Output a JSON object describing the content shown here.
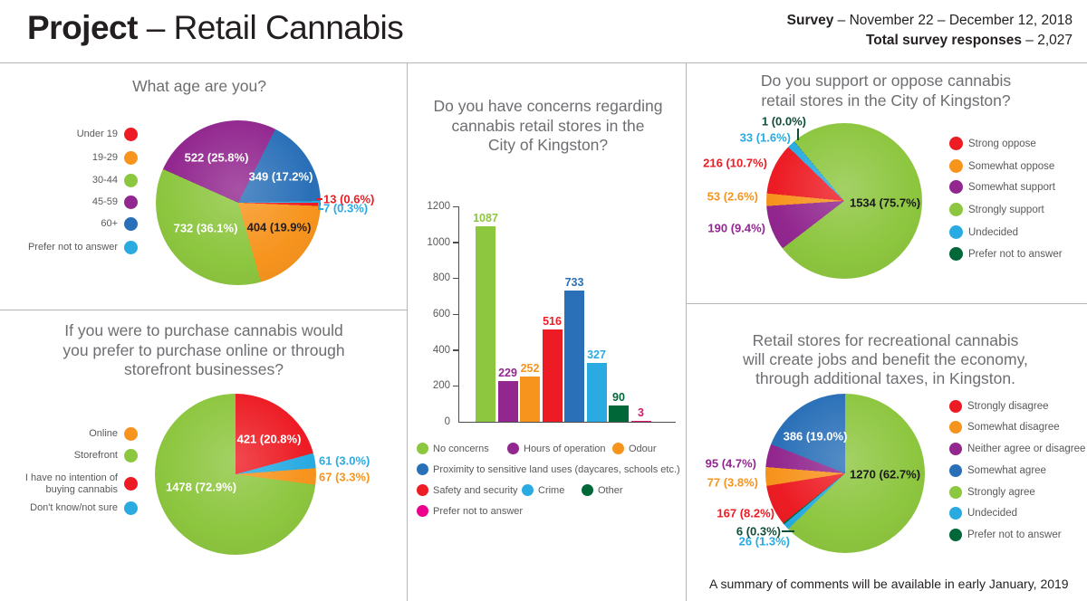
{
  "header": {
    "title_bold": "Project",
    "title_rest": " – Retail Cannabis",
    "survey_bold": "Survey",
    "survey_rest": " – November 22 – December 12, 2018",
    "responses_bold": "Total survey responses",
    "responses_rest": " – 2,027"
  },
  "footnote": "A summary of comments will be available in early January, 2019",
  "colors": {
    "red": "#ed1c24",
    "orange": "#f7941e",
    "green": "#8dc63f",
    "purple": "#92278f",
    "blue": "#2a70b8",
    "light_blue": "#29abe2",
    "dark_green": "#006838",
    "pink": "#d6186f"
  },
  "chart_data": [
    {
      "id": "age",
      "type": "pie",
      "title": "What age are you?",
      "title_lines": [
        "What age are you?"
      ],
      "legend_position": "left",
      "total": 2027,
      "legend": [
        {
          "label": "Under 19",
          "color": "#ed1c24"
        },
        {
          "label": "19-29",
          "color": "#f7941e"
        },
        {
          "label": "30-44",
          "color": "#8dc63f"
        },
        {
          "label": "45-59",
          "color": "#92278f"
        },
        {
          "label": "60+",
          "color": "#2a70b8"
        },
        {
          "label": "Prefer not to answer",
          "color": "#29abe2"
        }
      ],
      "start_deg": 90,
      "slices": [
        {
          "label": "Under 19",
          "value": 13,
          "pct": 0.6,
          "color": "#ed1c24",
          "label_color": "#ed1c24"
        },
        {
          "label": "19-29",
          "value": 404,
          "pct": 19.9,
          "color": "#f7941e",
          "label_color": "#231f20"
        },
        {
          "label": "30-44",
          "value": 732,
          "pct": 36.1,
          "color": "#8dc63f",
          "label_color": "#ffffff"
        },
        {
          "label": "45-59",
          "value": 522,
          "pct": 25.8,
          "color": "#92278f",
          "label_color": "#ffffff"
        },
        {
          "label": "60+",
          "value": 349,
          "pct": 17.2,
          "color": "#2a70b8",
          "label_color": "#ffffff"
        },
        {
          "label": "Prefer not to answer",
          "value": 7,
          "pct": 0.3,
          "color": "#29abe2",
          "label_color": "#29abe2"
        }
      ]
    },
    {
      "id": "purchase",
      "type": "pie",
      "title": "If you were to purchase cannabis would you prefer to purchase online or through storefront businesses?",
      "title_lines": [
        "If you were to purchase cannabis would",
        "you prefer to purchase online or through",
        "storefront businesses?"
      ],
      "legend_position": "left",
      "total": 2027,
      "legend": [
        {
          "label": "Online",
          "color": "#f7941e"
        },
        {
          "label": "Storefront",
          "color": "#8dc63f"
        },
        {
          "label": "I have no intention of buying cannabis",
          "label_lines": [
            "I have no intention of",
            "buying cannabis"
          ],
          "color": "#ed1c24"
        },
        {
          "label": "Don't know/not sure",
          "color": "#29abe2"
        }
      ],
      "start_deg": 0,
      "slices": [
        {
          "label": "I have no intention of buying cannabis",
          "value": 421,
          "pct": 20.8,
          "color": "#ed1c24",
          "label_color": "#ffffff"
        },
        {
          "label": "Don't know/not sure",
          "value": 61,
          "pct": 3.0,
          "color": "#29abe2",
          "label_color": "#29abe2"
        },
        {
          "label": "Online",
          "value": 67,
          "pct": 3.3,
          "color": "#f7941e",
          "label_color": "#f7941e"
        },
        {
          "label": "Storefront",
          "value": 1478,
          "pct": 72.9,
          "color": "#8dc63f",
          "label_color": "#ffffff"
        }
      ]
    },
    {
      "id": "concerns",
      "type": "bar",
      "title": "Do you have concerns regarding cannabis retail stores in the City of Kingston?",
      "title_lines": [
        "Do you have concerns regarding",
        "cannabis retail stores in the",
        "City of Kingston?"
      ],
      "xlabel": "",
      "ylabel": "",
      "ylim": [
        0,
        1200
      ],
      "yticks": [
        0,
        200,
        400,
        600,
        800,
        1000,
        1200
      ],
      "grid": false,
      "legend_position": "bottom",
      "categories": [
        "No concerns",
        "Hours of operation",
        "Odour",
        "Safety and security",
        "Proximity to sensitive land uses (daycares, schools etc.)",
        "Crime",
        "Other",
        "Prefer not to answer"
      ],
      "bars": [
        {
          "label": "No concerns",
          "value": 1087,
          "color": "#8dc63f"
        },
        {
          "label": "Hours of operation",
          "value": 229,
          "color": "#92278f"
        },
        {
          "label": "Odour",
          "value": 252,
          "color": "#f7941e"
        },
        {
          "label": "Safety and security",
          "value": 516,
          "color": "#ed1c24"
        },
        {
          "label": "Proximity to sensitive land uses (daycares, schools etc.)",
          "value": 733,
          "color": "#2a70b8"
        },
        {
          "label": "Crime",
          "value": 327,
          "color": "#29abe2"
        },
        {
          "label": "Other",
          "value": 90,
          "color": "#006838"
        },
        {
          "label": "Prefer not to answer",
          "value": 3,
          "color": "#d6186f"
        }
      ],
      "legend": [
        {
          "label": "No concerns",
          "color": "#8dc63f"
        },
        {
          "label": "Hours of operation",
          "color": "#92278f"
        },
        {
          "label": "Odour",
          "color": "#f7941e"
        },
        {
          "label": "Proximity to sensitive land uses (daycares, schools etc.)",
          "color": "#2a70b8"
        },
        {
          "label": "Safety and security",
          "color": "#ed1c24"
        },
        {
          "label": "Crime",
          "color": "#29abe2"
        },
        {
          "label": "Other",
          "color": "#006838"
        },
        {
          "label": "Prefer not to answer",
          "color": "#ec008c"
        }
      ]
    },
    {
      "id": "support",
      "type": "pie",
      "title": "Do you support or oppose cannabis retail stores in the City of Kingston?",
      "title_lines": [
        "Do you support or oppose cannabis",
        "retail stores in the City of Kingston?"
      ],
      "legend_position": "right",
      "total": 2027,
      "legend": [
        {
          "label": "Strong oppose",
          "color": "#ed1c24"
        },
        {
          "label": "Somewhat oppose",
          "color": "#f7941e"
        },
        {
          "label": "Somewhat support",
          "color": "#92278f"
        },
        {
          "label": "Strongly support",
          "color": "#8dc63f"
        },
        {
          "label": "Undecided",
          "color": "#29abe2"
        },
        {
          "label": "Prefer not to answer",
          "color": "#006838"
        }
      ],
      "start_deg": 320,
      "slices": [
        {
          "label": "Strongly support",
          "value": 1534,
          "pct": 75.7,
          "color": "#8dc63f",
          "label_color": "#1a1a1a"
        },
        {
          "label": "Somewhat support",
          "value": 190,
          "pct": 9.4,
          "color": "#92278f",
          "label_color": "#92278f"
        },
        {
          "label": "Somewhat oppose",
          "value": 53,
          "pct": 2.6,
          "color": "#f7941e",
          "label_color": "#f7941e"
        },
        {
          "label": "Strong oppose",
          "value": 216,
          "pct": 10.7,
          "color": "#ed1c24",
          "label_color": "#ed1c24"
        },
        {
          "label": "Undecided",
          "value": 33,
          "pct": 1.6,
          "color": "#29abe2",
          "label_color": "#29abe2"
        },
        {
          "label": "Prefer not to answer",
          "value": 1,
          "pct": 0.0,
          "color": "#006838",
          "label_color": "#0f4d36"
        }
      ]
    },
    {
      "id": "economy",
      "type": "pie",
      "title": "Retail stores for recreational cannabis will create jobs and benefit the economy, through additional taxes, in Kingston.",
      "title_lines": [
        "Retail stores for recreational cannabis",
        "will create jobs and benefit the economy,",
        "through additional taxes, in Kingston."
      ],
      "legend_position": "right",
      "total": 2027,
      "legend": [
        {
          "label": "Strongly disagree",
          "color": "#ed1c24"
        },
        {
          "label": "Somewhat disagree",
          "color": "#f7941e"
        },
        {
          "label": "Neither agree or disagree",
          "color": "#92278f"
        },
        {
          "label": "Somewhat agree",
          "color": "#2a70b8"
        },
        {
          "label": "Strongly agree",
          "color": "#8dc63f"
        },
        {
          "label": "Undecided",
          "color": "#29abe2"
        },
        {
          "label": "Prefer not to answer",
          "color": "#006838"
        }
      ],
      "start_deg": 0,
      "slices": [
        {
          "label": "Strongly agree",
          "value": 1270,
          "pct": 62.7,
          "color": "#8dc63f",
          "label_color": "#1a1a1a"
        },
        {
          "label": "Undecided",
          "value": 26,
          "pct": 1.3,
          "color": "#29abe2",
          "label_color": "#29abe2"
        },
        {
          "label": "Prefer not to answer",
          "value": 6,
          "pct": 0.3,
          "color": "#006838",
          "label_color": "#0f4d36"
        },
        {
          "label": "Strongly disagree",
          "value": 167,
          "pct": 8.2,
          "color": "#ed1c24",
          "label_color": "#ed1c24"
        },
        {
          "label": "Somewhat disagree",
          "value": 77,
          "pct": 3.8,
          "color": "#f7941e",
          "label_color": "#f7941e"
        },
        {
          "label": "Neither agree or disagree",
          "value": 95,
          "pct": 4.7,
          "color": "#92278f",
          "label_color": "#92278f"
        },
        {
          "label": "Somewhat agree",
          "value": 386,
          "pct": 19.0,
          "color": "#2a70b8",
          "label_color": "#ffffff"
        }
      ]
    }
  ]
}
